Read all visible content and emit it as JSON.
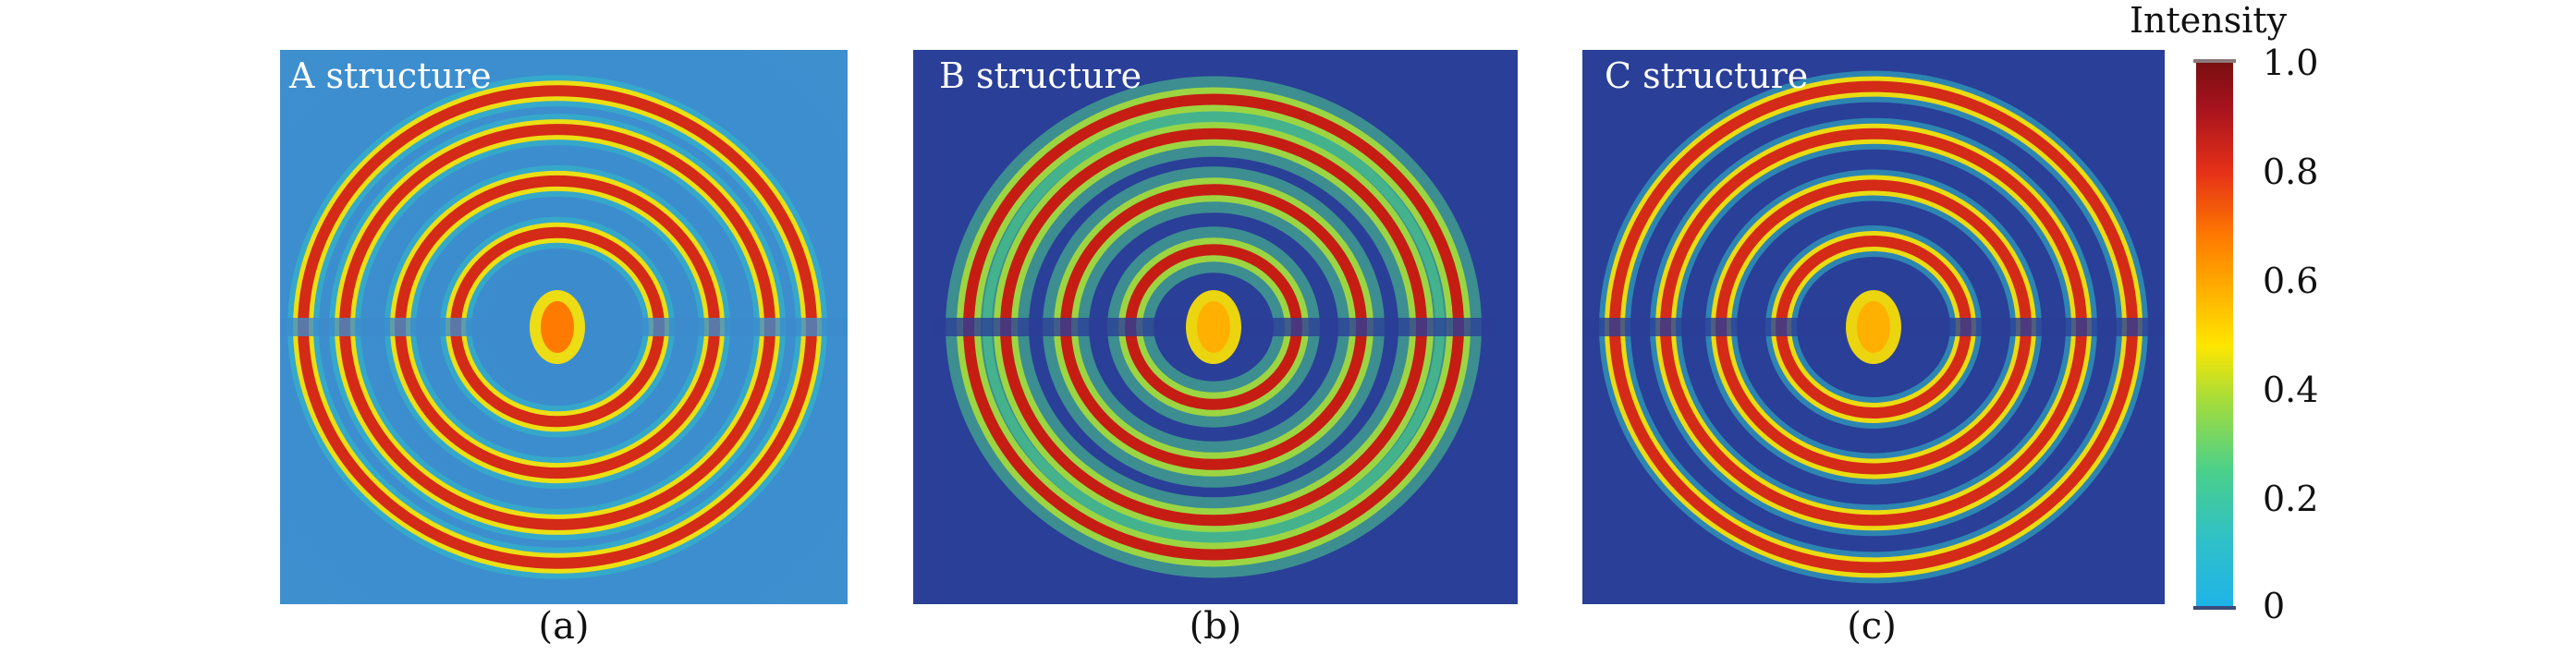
{
  "figure": {
    "panels": [
      {
        "id": "a",
        "title": "A structure",
        "caption": "(a)",
        "background_level": 0.15
      },
      {
        "id": "b",
        "title": "B structure",
        "caption": "(b)",
        "background_level": 0.0
      },
      {
        "id": "c",
        "title": "C structure",
        "caption": "(c)",
        "background_level": 0.0
      }
    ],
    "colorbar": {
      "title": "Intensity",
      "ticks": [
        "1.0",
        "0.8",
        "0.6",
        "0.4",
        "0.2",
        "0"
      ],
      "range": [
        0,
        1
      ]
    }
  },
  "chart_data": [
    {
      "type": "heatmap",
      "title": "A structure",
      "xlabel": "",
      "ylabel": "",
      "description_values": {
        "value_range": [
          0,
          1
        ],
        "center_spot_intensity": 0.7,
        "ring_peak_intensity": 0.9,
        "background_intensity": 0.15,
        "ring_count": 4
      }
    },
    {
      "type": "heatmap",
      "title": "B structure",
      "xlabel": "",
      "ylabel": "",
      "description_values": {
        "value_range": [
          0,
          1
        ],
        "center_spot_intensity": 0.75,
        "ring_peak_intensity": 0.9,
        "background_intensity": 0.0,
        "ring_count": 4
      }
    },
    {
      "type": "heatmap",
      "title": "C structure",
      "xlabel": "",
      "ylabel": "",
      "description_values": {
        "value_range": [
          0,
          1
        ],
        "center_spot_intensity": 0.65,
        "ring_peak_intensity": 0.92,
        "background_intensity": 0.0,
        "ring_count": 4
      }
    }
  ],
  "colors": {
    "colormap": [
      "#1fb4e8",
      "#2fc0c8",
      "#4bd08a",
      "#a6dd3a",
      "#ffe600",
      "#ffb000",
      "#ff7a00",
      "#e53018",
      "#a5121e",
      "#7a0f0f"
    ],
    "background_low": "#2a3f97",
    "background_a": "#3c8ccd"
  }
}
